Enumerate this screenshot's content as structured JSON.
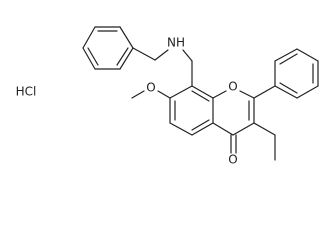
{
  "labels": [
    "HCl",
    "NH",
    "O",
    "O",
    "O"
  ]
}
